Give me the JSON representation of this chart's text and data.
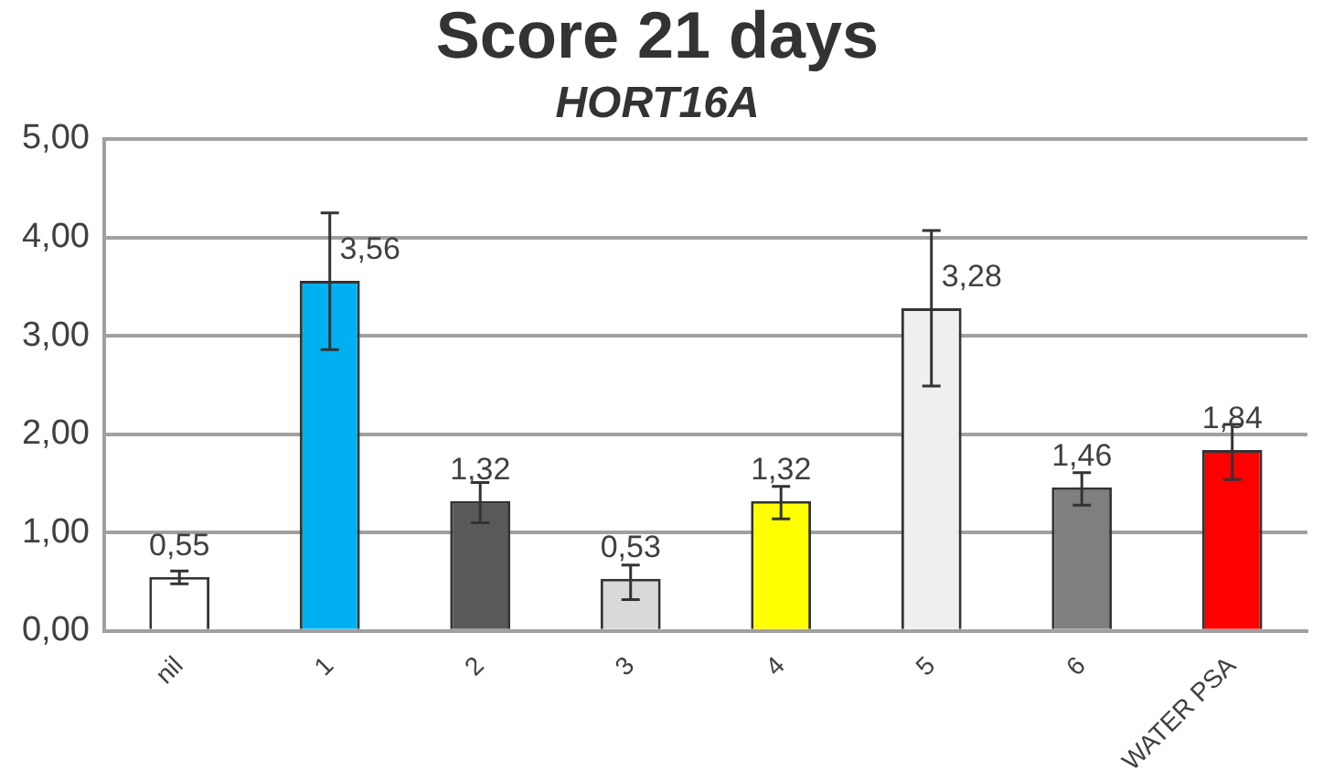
{
  "chart_data": {
    "type": "bar",
    "title": "Score 21 days",
    "subtitle": "HORT16A",
    "categories": [
      "nil",
      "1",
      "2",
      "3",
      "4",
      "5",
      "6",
      "WATER PSA"
    ],
    "values": [
      0.55,
      3.56,
      1.32,
      0.53,
      1.32,
      3.28,
      1.46,
      1.84
    ],
    "colors": [
      "#ffffff",
      "#00b0f0",
      "#595959",
      "#d9d9d9",
      "#ffff00",
      "#eeefef",
      "#7f7f7f",
      "#ff0000"
    ],
    "errors": [
      [
        0.48,
        0.61
      ],
      [
        2.86,
        4.25
      ],
      [
        1.1,
        1.51
      ],
      [
        0.32,
        0.67
      ],
      [
        1.14,
        1.47
      ],
      [
        2.49,
        4.07
      ],
      [
        1.28,
        1.61
      ],
      [
        1.54,
        2.1
      ]
    ],
    "value_labels": [
      "0,55",
      "3,56",
      "1,32",
      "0,53",
      "1,32",
      "3,28",
      "1,46",
      "1,84"
    ],
    "ylim": [
      0,
      5
    ],
    "yticks": [
      {
        "value": 0,
        "label": "0,00"
      },
      {
        "value": 1,
        "label": "1,00"
      },
      {
        "value": 2,
        "label": "2,00"
      },
      {
        "value": 3,
        "label": "3,00"
      },
      {
        "value": 4,
        "label": "4,00"
      },
      {
        "value": 5,
        "label": "5,00"
      }
    ],
    "grid": "y",
    "legend": false
  }
}
